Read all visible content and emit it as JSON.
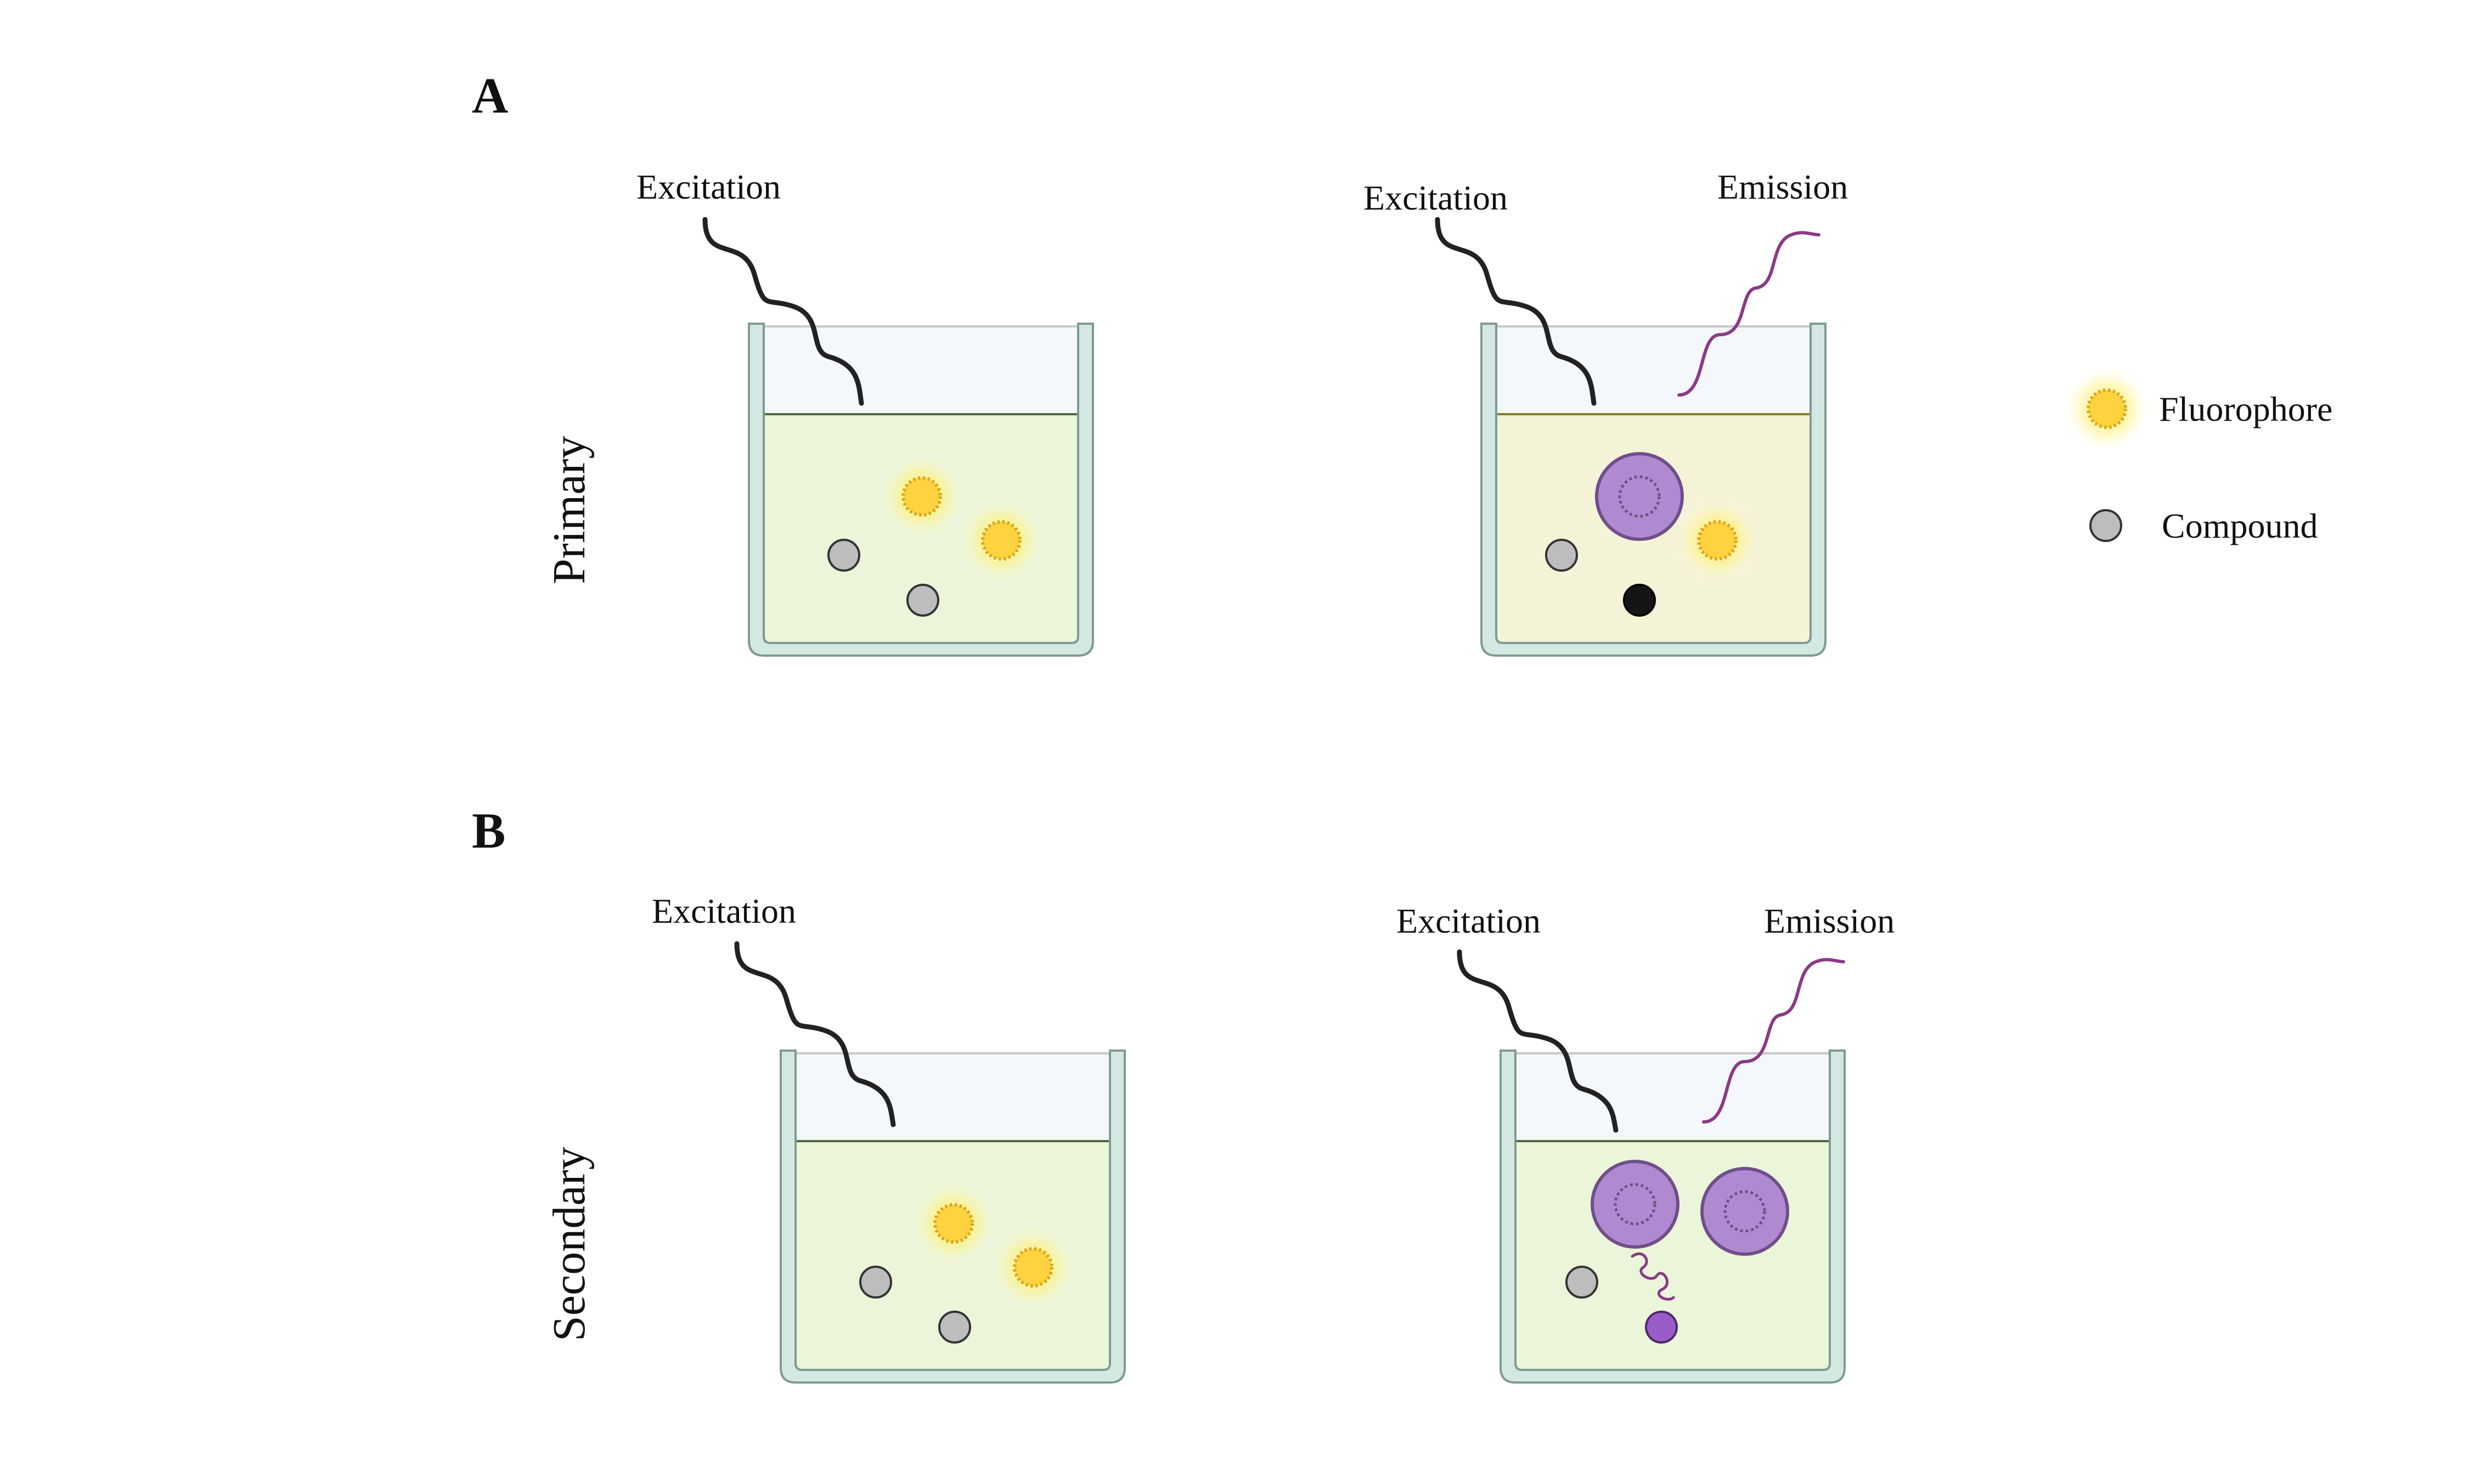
{
  "panels": [
    {
      "letter": "A",
      "row_label": "Primary"
    },
    {
      "letter": "B",
      "row_label": "Secondary"
    }
  ],
  "beaker_labels": {
    "excitation": "Excitation",
    "emission": "Emission"
  },
  "legend": {
    "fluorophore": "Fluorophore",
    "compound": "Compound"
  },
  "colors": {
    "beaker_wall": "#d3e8e2",
    "beaker_stroke": "#7f9a93",
    "air": "#f4f8fc",
    "liquid_green": "#ebf5d9",
    "liquid_yellow": "#f5f3d7",
    "fluorophore": "#ffd23f",
    "fluorophore_glow": "#fff06a",
    "compound": "#bdbdbd",
    "quencher": "#151515",
    "cell": "#b08ad0",
    "cell_stroke": "#6f4e8a",
    "product": "#9a5cc8",
    "emission_wave": "#8b3a86",
    "excitation_wave": "#222222"
  }
}
